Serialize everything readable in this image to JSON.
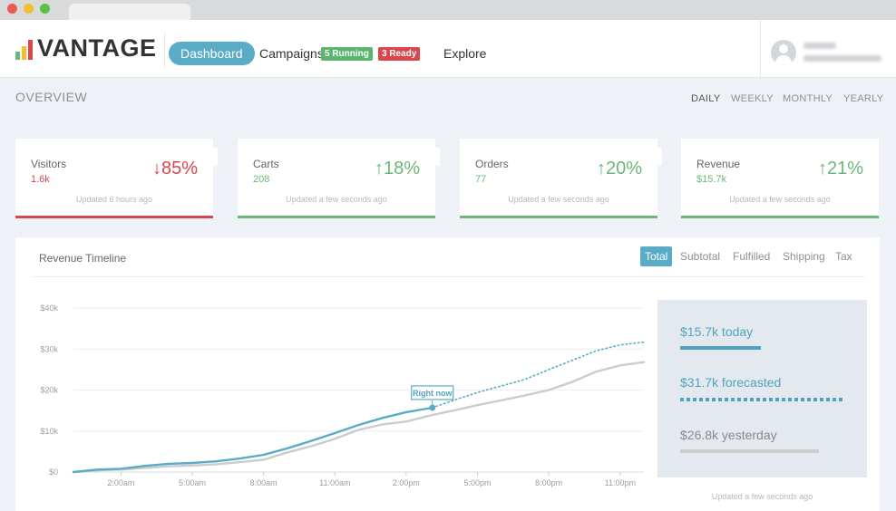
{
  "brand": {
    "name": "VANTAGE",
    "bar_colors": [
      "#6cb878",
      "#f5be2e",
      "#d9464c"
    ]
  },
  "nav": {
    "dashboard": "Dashboard",
    "campaigns": "Campaigns",
    "running_badge": "5 Running",
    "ready_badge": "3 Ready",
    "explore": "Explore"
  },
  "user": {
    "avatar_icon": "user-avatar-icon"
  },
  "overview": {
    "title": "OVERVIEW",
    "periods": [
      "DAILY",
      "WEEKLY",
      "MONTHLY",
      "YEARLY"
    ],
    "active_period": "DAILY"
  },
  "cards": [
    {
      "label": "Visitors",
      "value": "1.6k",
      "change": "85%",
      "direction": "down",
      "arrow": "↓",
      "updated": "Updated 6 hours ago",
      "color": "#d9464c"
    },
    {
      "label": "Carts",
      "value": "208",
      "change": "18%",
      "direction": "up",
      "arrow": "↑",
      "updated": "Updated a few seconds ago",
      "color": "#6cb878"
    },
    {
      "label": "Orders",
      "value": "77",
      "change": "20%",
      "direction": "up",
      "arrow": "↑",
      "updated": "Updated a few seconds ago",
      "color": "#6cb878"
    },
    {
      "label": "Revenue",
      "value": "$15.7k",
      "change": "21%",
      "direction": "up",
      "arrow": "↑",
      "updated": "Updated a few seconds ago",
      "color": "#6cb878"
    }
  ],
  "revenue_panel": {
    "title": "Revenue Timeline",
    "tabs": [
      "Total",
      "Subtotal",
      "Fulfilled",
      "Shipping",
      "Tax"
    ],
    "active_tab": "Total",
    "summary": {
      "today": "$15.7k today",
      "forecasted": "$31.7k forecasted",
      "yesterday": "$26.8k yesterday"
    },
    "updated": "Updated a few seconds ago"
  },
  "chart_data": {
    "type": "line",
    "ylim": [
      0,
      40000
    ],
    "y_ticks": [
      {
        "value": 0,
        "label": "$0"
      },
      {
        "value": 10000,
        "label": "$10k"
      },
      {
        "value": 20000,
        "label": "$20k"
      },
      {
        "value": 30000,
        "label": "$30k"
      },
      {
        "value": 40000,
        "label": "$40k"
      }
    ],
    "xlim": [
      0,
      24
    ],
    "x_ticks": [
      {
        "value": 2,
        "label": "2:00am"
      },
      {
        "value": 5,
        "label": "5:00am"
      },
      {
        "value": 8,
        "label": "8:00am"
      },
      {
        "value": 11,
        "label": "11:00am"
      },
      {
        "value": 14,
        "label": "2:00pm"
      },
      {
        "value": 17,
        "label": "5:00pm"
      },
      {
        "value": 20,
        "label": "8:00pm"
      },
      {
        "value": 23,
        "label": "11:00pm"
      }
    ],
    "grid": true,
    "annotation": {
      "label": "Right now",
      "x": 15.1,
      "y": 15700
    },
    "series": [
      {
        "key": "today",
        "style": "solid",
        "color": "#5aabc5",
        "x": [
          0,
          1,
          2,
          3,
          4,
          5,
          6,
          7,
          8,
          9,
          10,
          11,
          12,
          13,
          14,
          15.1
        ],
        "y": [
          0,
          600,
          800,
          1500,
          2000,
          2200,
          2600,
          3300,
          4200,
          5800,
          7600,
          9500,
          11500,
          13200,
          14600,
          15700
        ]
      },
      {
        "key": "forecast",
        "style": "dotted",
        "color": "#5aabc5",
        "x": [
          15.1,
          16,
          17,
          18,
          19,
          20,
          21,
          22,
          23,
          24
        ],
        "y": [
          15700,
          17500,
          19400,
          21000,
          22600,
          25000,
          27300,
          29600,
          31000,
          31700
        ]
      },
      {
        "key": "yesterday",
        "style": "solid",
        "color": "#c9ccd1",
        "x": [
          0,
          1,
          2,
          3,
          4,
          5,
          6,
          7,
          8,
          9,
          10,
          11,
          12,
          13,
          14,
          15,
          16,
          17,
          18,
          19,
          20,
          21,
          22,
          23,
          24
        ],
        "y": [
          0,
          400,
          600,
          1000,
          1400,
          1600,
          1900,
          2400,
          3000,
          4800,
          6300,
          8100,
          10300,
          11600,
          12300,
          13800,
          15000,
          16300,
          17500,
          18700,
          20000,
          22000,
          24500,
          26000,
          26800
        ]
      }
    ]
  }
}
